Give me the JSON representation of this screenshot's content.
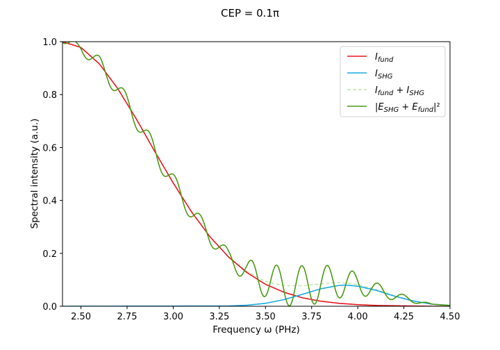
{
  "chart_data": {
    "type": "line",
    "title": "CEP = 0.1π",
    "xlabel": "Frequency ω (PHz)",
    "ylabel": "Spectral intensity (a.u.)",
    "xlim": [
      2.4,
      4.5
    ],
    "ylim": [
      0.0,
      1.0
    ],
    "x_ticks": [
      "2.50",
      "2.75",
      "3.00",
      "3.25",
      "3.50",
      "3.75",
      "4.00",
      "4.25",
      "4.50"
    ],
    "y_ticks": [
      "0.0",
      "0.2",
      "0.4",
      "0.6",
      "0.8",
      "1.0"
    ],
    "grid": false,
    "legend_position": "top-right",
    "series": [
      {
        "name": "I_fund",
        "color": "#e8141c",
        "style": "solid",
        "x": [
          2.4,
          2.5,
          2.6,
          2.7,
          2.8,
          2.9,
          3.0,
          3.1,
          3.2,
          3.3,
          3.4,
          3.5,
          3.6,
          3.7,
          3.8,
          3.9,
          4.0,
          4.1,
          4.2,
          4.3,
          4.4,
          4.5
        ],
        "y": [
          1.0,
          0.978,
          0.916,
          0.822,
          0.708,
          0.585,
          0.466,
          0.356,
          0.262,
          0.186,
          0.127,
          0.083,
          0.053,
          0.032,
          0.019,
          0.011,
          0.006,
          0.003,
          0.002,
          0.001,
          0.0,
          0.0
        ]
      },
      {
        "name": "I_SHG",
        "color": "#19a9e6",
        "style": "solid",
        "x": [
          2.4,
          3.3,
          3.4,
          3.5,
          3.6,
          3.7,
          3.8,
          3.9,
          3.93,
          4.0,
          4.1,
          4.2,
          4.3,
          4.4,
          4.5
        ],
        "y": [
          0.0,
          0.001,
          0.004,
          0.011,
          0.025,
          0.045,
          0.066,
          0.079,
          0.08,
          0.076,
          0.06,
          0.038,
          0.02,
          0.008,
          0.003
        ]
      },
      {
        "name": "I_fund + I_SHG",
        "color": "#b5dc9b",
        "style": "dashed",
        "x": [
          3.3,
          3.4,
          3.5,
          3.6,
          3.7,
          3.8,
          3.9,
          4.0,
          4.1,
          4.2,
          4.3,
          4.4,
          4.5
        ],
        "y": [
          0.187,
          0.131,
          0.094,
          0.078,
          0.077,
          0.085,
          0.09,
          0.082,
          0.063,
          0.04,
          0.021,
          0.008,
          0.003
        ]
      },
      {
        "name": "|E_SHG + E_fund|²",
        "color": "#4a9a12",
        "style": "solid",
        "model": "interference",
        "x_start": 2.4,
        "x_end": 4.5
      }
    ],
    "legend": [
      {
        "base": "I",
        "sub": "fund",
        "rest": ""
      },
      {
        "base": "I",
        "sub": "SHG",
        "rest": ""
      },
      {
        "base": "I",
        "sub": "fund",
        "rest": " + I",
        "sub2": "SHG"
      },
      {
        "base": "|E",
        "sub": "SHG",
        "rest": " + E",
        "sub2": "fund",
        "tail": "|²"
      }
    ]
  }
}
